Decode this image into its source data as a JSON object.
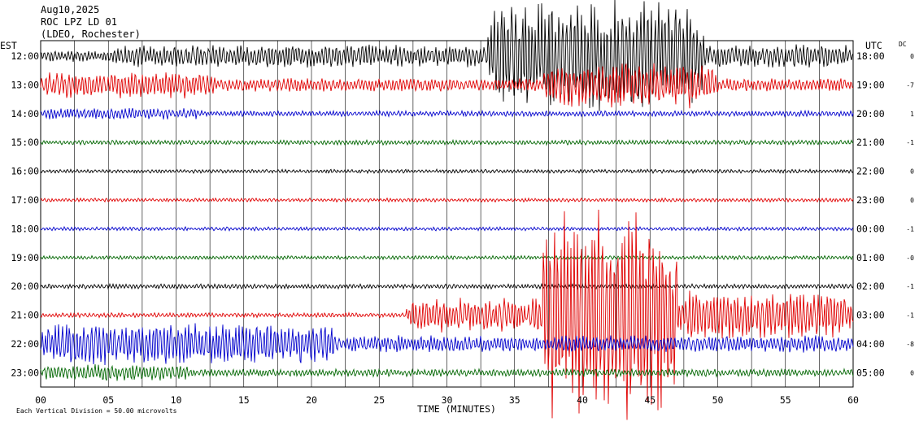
{
  "chart_data": {
    "type": "line",
    "header": [
      "Aug10,2025",
      "ROC LPZ LD 01",
      "(LDEO, Rochester)"
    ],
    "left_axis_title": "EST",
    "right_axis_title": "UTC",
    "dc_title": "DC",
    "xlabel": "TIME (MINUTES)",
    "x_ticks": [
      "00",
      "05",
      "10",
      "15",
      "20",
      "25",
      "30",
      "35",
      "40",
      "45",
      "50",
      "55",
      "60"
    ],
    "xlim": [
      0,
      60
    ],
    "gridlines_every_minutes": 2.5,
    "footer_note": "Each Vertical Division =   50.00 microvolts",
    "trace_colors": [
      "#000000",
      "#e00000",
      "#0000cc",
      "#006600"
    ],
    "traces": [
      {
        "est": "12:00",
        "utc": "18:00",
        "dc": "0",
        "base_amp": 6.0,
        "bursts": [
          {
            "start": 5,
            "end": 60,
            "amp": 12
          },
          {
            "start": 33,
            "end": 49,
            "amp": 60
          }
        ]
      },
      {
        "est": "13:00",
        "utc": "19:00",
        "dc": "-7",
        "base_amp": 5.0,
        "bursts": [
          {
            "start": 0,
            "end": 13,
            "amp": 14
          },
          {
            "start": 13,
            "end": 60,
            "amp": 7
          },
          {
            "start": 37,
            "end": 50,
            "amp": 25
          }
        ]
      },
      {
        "est": "14:00",
        "utc": "20:00",
        "dc": "1",
        "base_amp": 3.0,
        "bursts": [
          {
            "start": 0,
            "end": 12,
            "amp": 6
          }
        ]
      },
      {
        "est": "15:00",
        "utc": "21:00",
        "dc": "-1",
        "base_amp": 2.5,
        "bursts": []
      },
      {
        "est": "16:00",
        "utc": "22:00",
        "dc": "0",
        "base_amp": 2.0,
        "bursts": []
      },
      {
        "est": "17:00",
        "utc": "23:00",
        "dc": "0",
        "base_amp": 2.0,
        "bursts": []
      },
      {
        "est": "18:00",
        "utc": "00:00",
        "dc": "-1",
        "base_amp": 2.0,
        "bursts": []
      },
      {
        "est": "19:00",
        "utc": "01:00",
        "dc": "-0",
        "base_amp": 2.0,
        "bursts": []
      },
      {
        "est": "20:00",
        "utc": "02:00",
        "dc": "-1",
        "base_amp": 2.5,
        "bursts": []
      },
      {
        "est": "21:00",
        "utc": "03:00",
        "dc": "-1",
        "base_amp": 2.5,
        "bursts": [
          {
            "start": 27,
            "end": 36,
            "amp": 18
          },
          {
            "start": 36,
            "end": 60,
            "amp": 26
          },
          {
            "start": 37,
            "end": 47,
            "amp": 110
          }
        ]
      },
      {
        "est": "22:00",
        "utc": "04:00",
        "dc": "-8",
        "base_amp": 6.0,
        "bursts": [
          {
            "start": 0,
            "end": 22,
            "amp": 22
          },
          {
            "start": 22,
            "end": 60,
            "amp": 9
          }
        ]
      },
      {
        "est": "23:00",
        "utc": "05:00",
        "dc": "0",
        "base_amp": 4.0,
        "bursts": [
          {
            "start": 0,
            "end": 11,
            "amp": 9
          }
        ]
      }
    ]
  }
}
